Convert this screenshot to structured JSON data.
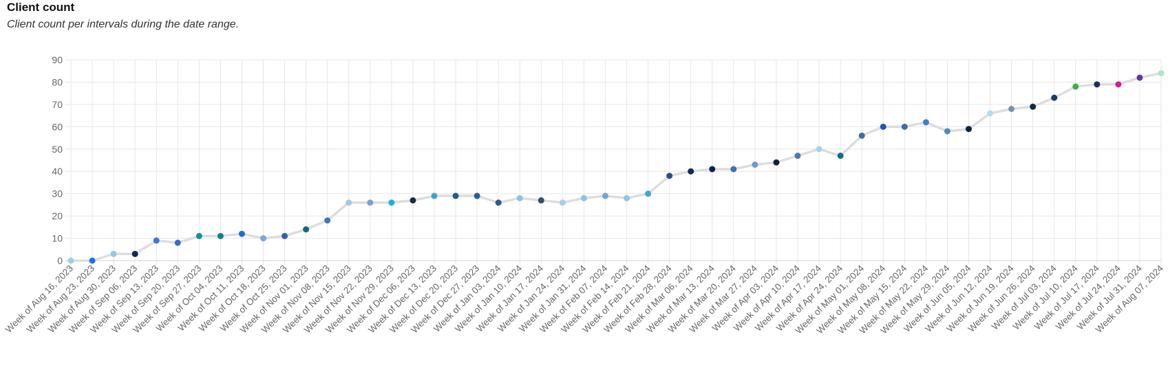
{
  "header": {
    "title": "Client count",
    "subtitle": "Client count per intervals during the date range."
  },
  "chart_data": {
    "type": "line",
    "xlabel": "",
    "ylabel": "",
    "ylim": [
      0,
      90
    ],
    "y_ticks": [
      0,
      10,
      20,
      30,
      40,
      50,
      60,
      70,
      80,
      90
    ],
    "grid": true,
    "line_color": "#dddddd",
    "categories": [
      "Week of Aug 16, 2023",
      "Week of Aug 23, 2023",
      "Week of Aug 30, 2023",
      "Week of Sep 06, 2023",
      "Week of Sep 13, 2023",
      "Week of Sep 20, 2023",
      "Week of Sep 27, 2023",
      "Week of Oct 04, 2023",
      "Week of Oct 11, 2023",
      "Week of Oct 18, 2023",
      "Week of Oct 25, 2023",
      "Week of Nov 01, 2023",
      "Week of Nov 08, 2023",
      "Week of Nov 15, 2023",
      "Week of Nov 22, 2023",
      "Week of Nov 29, 2023",
      "Week of Dec 06, 2023",
      "Week of Dec 13, 2023",
      "Week of Dec 20, 2023",
      "Week of Dec 27, 2023",
      "Week of Jan 03, 2024",
      "Week of Jan 10, 2024",
      "Week of Jan 17, 2024",
      "Week of Jan 24, 2024",
      "Week of Jan 31, 2024",
      "Week of Feb 07, 2024",
      "Week of Feb 14, 2024",
      "Week of Feb 21, 2024",
      "Week of Feb 28, 2024",
      "Week of Mar 06, 2024",
      "Week of Mar 13, 2024",
      "Week of Mar 20, 2024",
      "Week of Mar 27, 2024",
      "Week of Apr 03, 2024",
      "Week of Apr 10, 2024",
      "Week of Apr 17, 2024",
      "Week of Apr 24, 2024",
      "Week of May 01, 2024",
      "Week of May 08, 2024",
      "Week of May 15, 2024",
      "Week of May 22, 2024",
      "Week of May 29, 2024",
      "Week of Jun 05, 2024",
      "Week of Jun 12, 2024",
      "Week of Jun 19, 2024",
      "Week of Jun 26, 2024",
      "Week of Jul 03, 2024",
      "Week of Jul 10, 2024",
      "Week of Jul 17, 2024",
      "Week of Jul 24, 2024",
      "Week of Jul 31, 2024",
      "Week of Aug 07, 2024"
    ],
    "values": [
      0,
      0,
      3,
      3,
      9,
      8,
      11,
      11,
      12,
      10,
      11,
      14,
      18,
      26,
      26,
      26,
      27,
      29,
      29,
      29,
      26,
      28,
      27,
      26,
      28,
      29,
      28,
      30,
      38,
      40,
      41,
      41,
      43,
      44,
      47,
      50,
      47,
      56,
      60,
      60,
      62,
      58,
      59,
      66,
      68,
      69,
      73,
      78,
      79,
      79,
      82,
      84
    ],
    "point_colors": [
      "#9bd0ea",
      "#1a73e8",
      "#8ecae6",
      "#0d2b4f",
      "#3a7bd5",
      "#2f6fd6",
      "#138ea0",
      "#137f8f",
      "#1a6fd6",
      "#7aa6d8",
      "#2b63b5",
      "#0f6d7a",
      "#3d78c4",
      "#a6c8e6",
      "#7f9fd6",
      "#19b3d9",
      "#1f2a44",
      "#3aa0dd",
      "#1f5d8a",
      "#2a5aa0",
      "#2a5e8c",
      "#8cc2e6",
      "#2f4f7a",
      "#a8cde6",
      "#8ec3e0",
      "#6aa6dc",
      "#90c5e6",
      "#3aa8d8",
      "#2c4f86",
      "#102a5c",
      "#0f2350",
      "#3a6fc0",
      "#6b9bd6",
      "#0e2246",
      "#4d78b8",
      "#a5d3ee",
      "#0a6d96",
      "#3e6fa3",
      "#1658c0",
      "#3a6ea8",
      "#3c7fd0",
      "#4a8ac8",
      "#0f2340",
      "#b5dbef",
      "#6f94b8",
      "#0f2a4a",
      "#143d6b",
      "#3fae49",
      "#1b2a6b",
      "#d81b9c",
      "#5e35a8",
      "#a6e8c8"
    ]
  }
}
